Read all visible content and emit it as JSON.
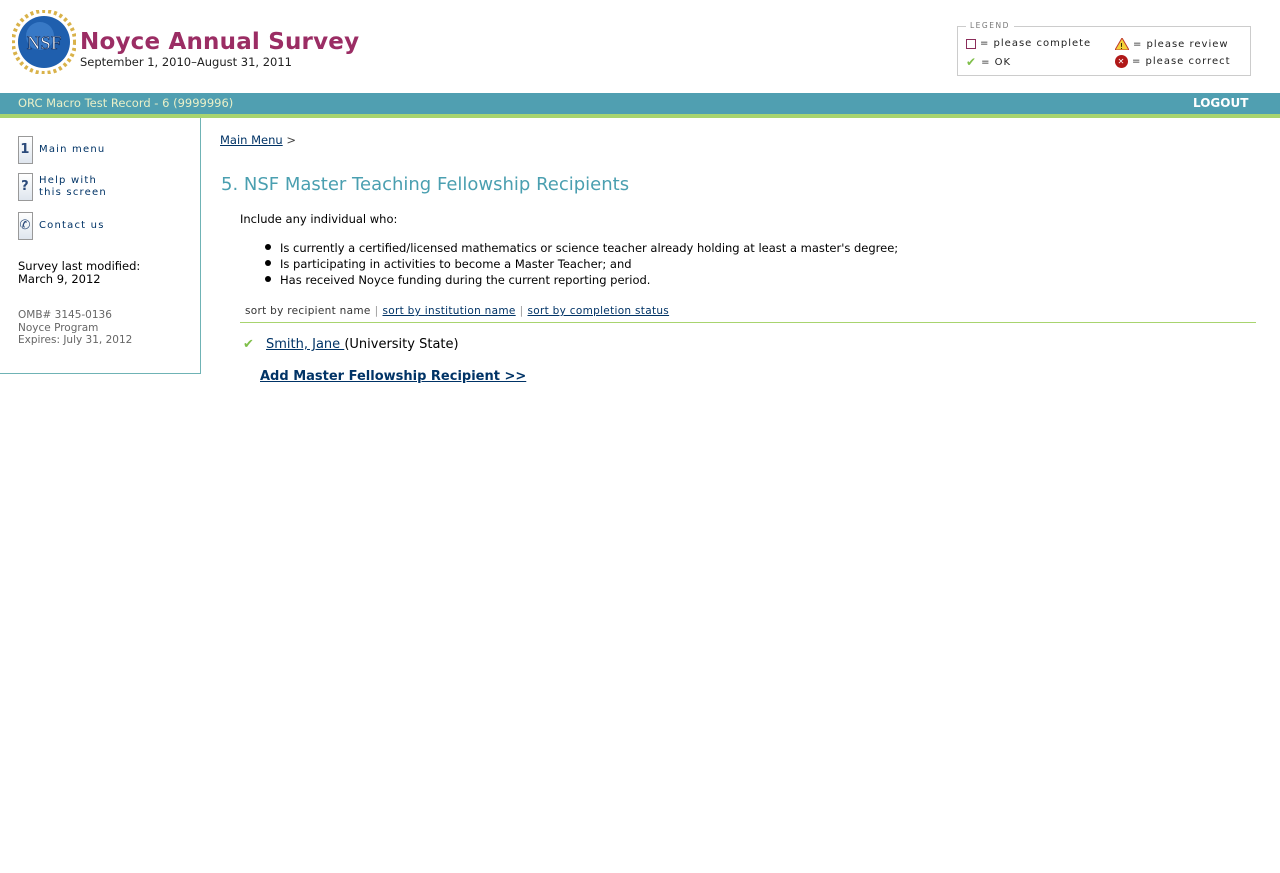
{
  "header": {
    "logo_text": "NSF",
    "title": "Noyce Annual Survey",
    "subtitle": "September 1, 2010–August 31, 2011"
  },
  "legend": {
    "label": "LEGEND",
    "items": [
      {
        "icon": "empty-square-icon",
        "text": "= please complete"
      },
      {
        "icon": "warning-icon",
        "text": "= please review"
      },
      {
        "icon": "checkmark-icon",
        "text": "= OK"
      },
      {
        "icon": "error-x-icon",
        "text": "= please correct"
      }
    ]
  },
  "topbar": {
    "record": "ORC Macro Test Record - 6 (9999996)",
    "logout": "LOGOUT"
  },
  "sidebar": {
    "links": [
      {
        "icon": "home-icon",
        "label": "Main menu"
      },
      {
        "icon": "help-icon",
        "label_1": "Help with",
        "label_2": "this screen"
      },
      {
        "icon": "phone-icon",
        "label": "Contact us"
      }
    ],
    "modified_label": "Survey last modified:",
    "modified_date": "March 9, 2012",
    "omb": "OMB# 3145-0136",
    "program": "Noyce Program",
    "expires": "Expires: July 31, 2012"
  },
  "main": {
    "breadcrumb": {
      "link": "Main Menu",
      "sep": ">"
    },
    "title": "5. NSF Master Teaching Fellowship Recipients",
    "intro": "Include any individual who:",
    "bullets": [
      "Is currently a certified/licensed mathematics or science teacher already holding at least a master's degree;",
      "Is participating in activities to become a Master Teacher; and",
      "Has received Noyce funding during the current reporting period."
    ],
    "sort": {
      "current": "sort by recipient name",
      "institution": "sort by institution name",
      "status": "sort by completion status",
      "sep": "|"
    },
    "recipients": [
      {
        "status": "ok",
        "name": "Smith, Jane ",
        "institution": "(University State)"
      }
    ],
    "add_link": "Add Master Fellowship Recipient >>"
  },
  "colors": {
    "accent": "#509fb1",
    "title": "#9b2d64",
    "green": "#a8d46f",
    "link": "#003366"
  }
}
